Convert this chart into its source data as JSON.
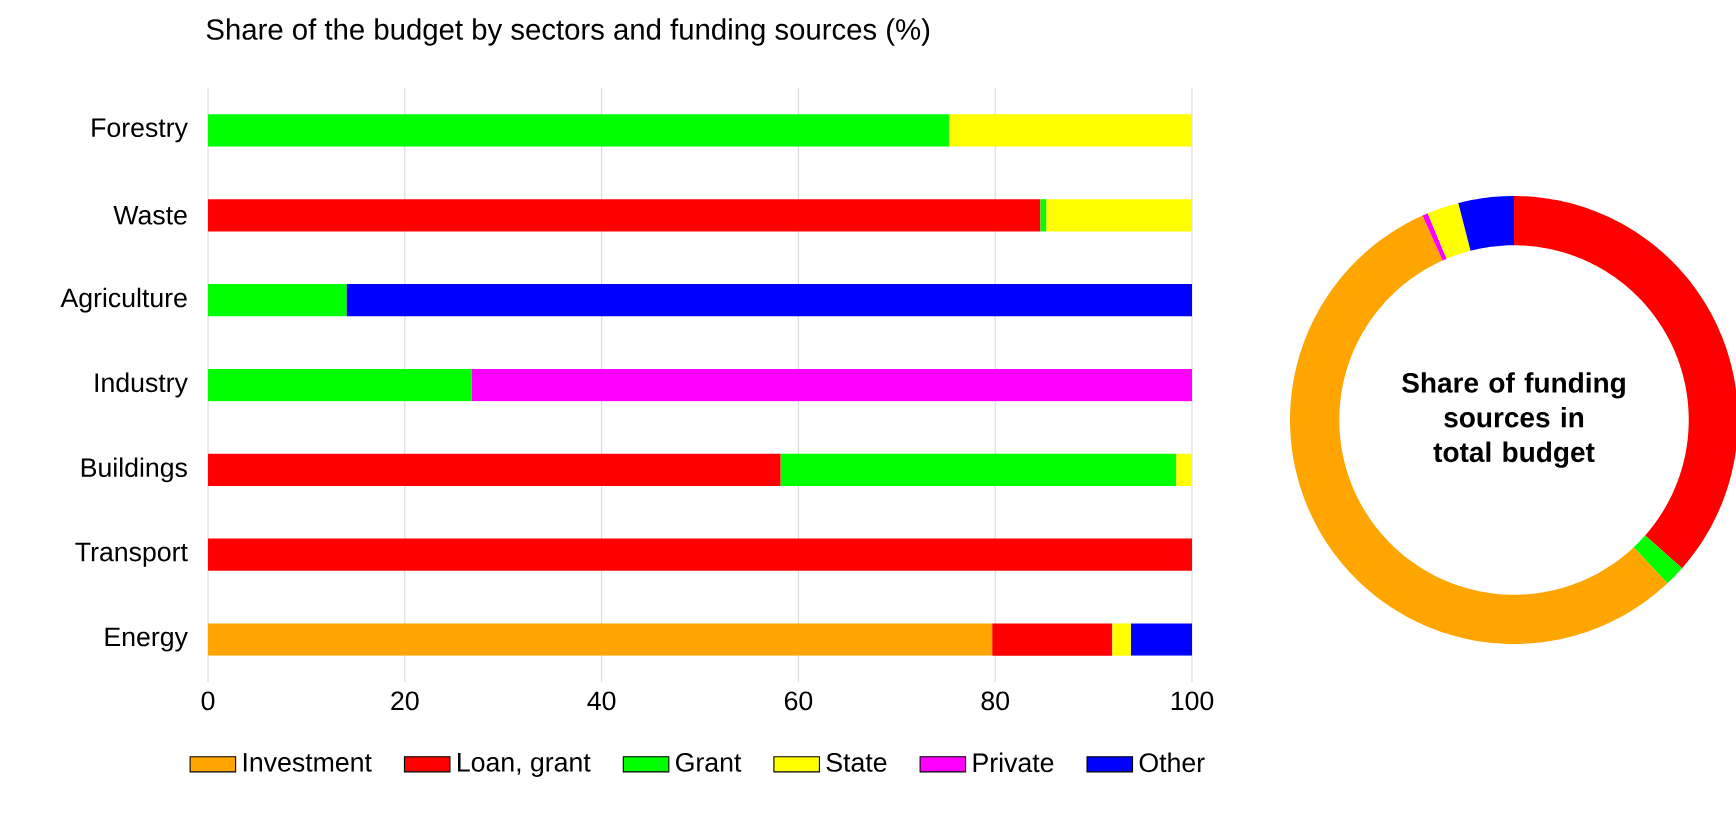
{
  "chart_data": [
    {
      "type": "bar",
      "orientation": "horizontal",
      "stacked": true,
      "title": "Share of the budget by sectors and funding sources (%)",
      "categories": [
        "Forestry",
        "Waste",
        "Agriculture",
        "Industry",
        "Buildings",
        "Transport",
        "Energy"
      ],
      "series": [
        {
          "name": "Investment",
          "color": "#ffa500",
          "values": [
            null,
            null,
            null,
            null,
            null,
            null,
            79.7
          ]
        },
        {
          "name": "Loan, grant",
          "color": "#ff0000",
          "values": [
            null,
            84.6,
            null,
            null,
            58.2,
            100,
            12.2
          ]
        },
        {
          "name": "Grant",
          "color": "#00ff00",
          "values": [
            75.3,
            0.6,
            14.1,
            26.8,
            40.2,
            null,
            null
          ]
        },
        {
          "name": "State",
          "color": "#ffff00",
          "values": [
            24.7,
            14.8,
            null,
            null,
            1.6,
            null,
            1.9
          ]
        },
        {
          "name": "Private",
          "color": "#ff00ff",
          "values": [
            null,
            null,
            null,
            73.2,
            null,
            null,
            null
          ]
        },
        {
          "name": "Other",
          "color": "#0000ff",
          "values": [
            null,
            null,
            85.9,
            null,
            null,
            null,
            6.2
          ]
        }
      ],
      "xlim": [
        0,
        100
      ],
      "xticks": [
        0,
        20,
        40,
        60,
        80,
        100
      ],
      "grid": "x",
      "legend": "bottom"
    },
    {
      "type": "donut",
      "title": "Share of funding sources in total budget",
      "categories": [
        null,
        null,
        null,
        null,
        null,
        null
      ],
      "values": [
        36.5,
        1.5,
        55.3,
        0.4,
        2.3,
        4.0
      ],
      "colors": [
        "#ff0000",
        "#00ff00",
        "#ffa500",
        "#ff00ff",
        "#ffff00",
        "#0000ff"
      ]
    }
  ]
}
